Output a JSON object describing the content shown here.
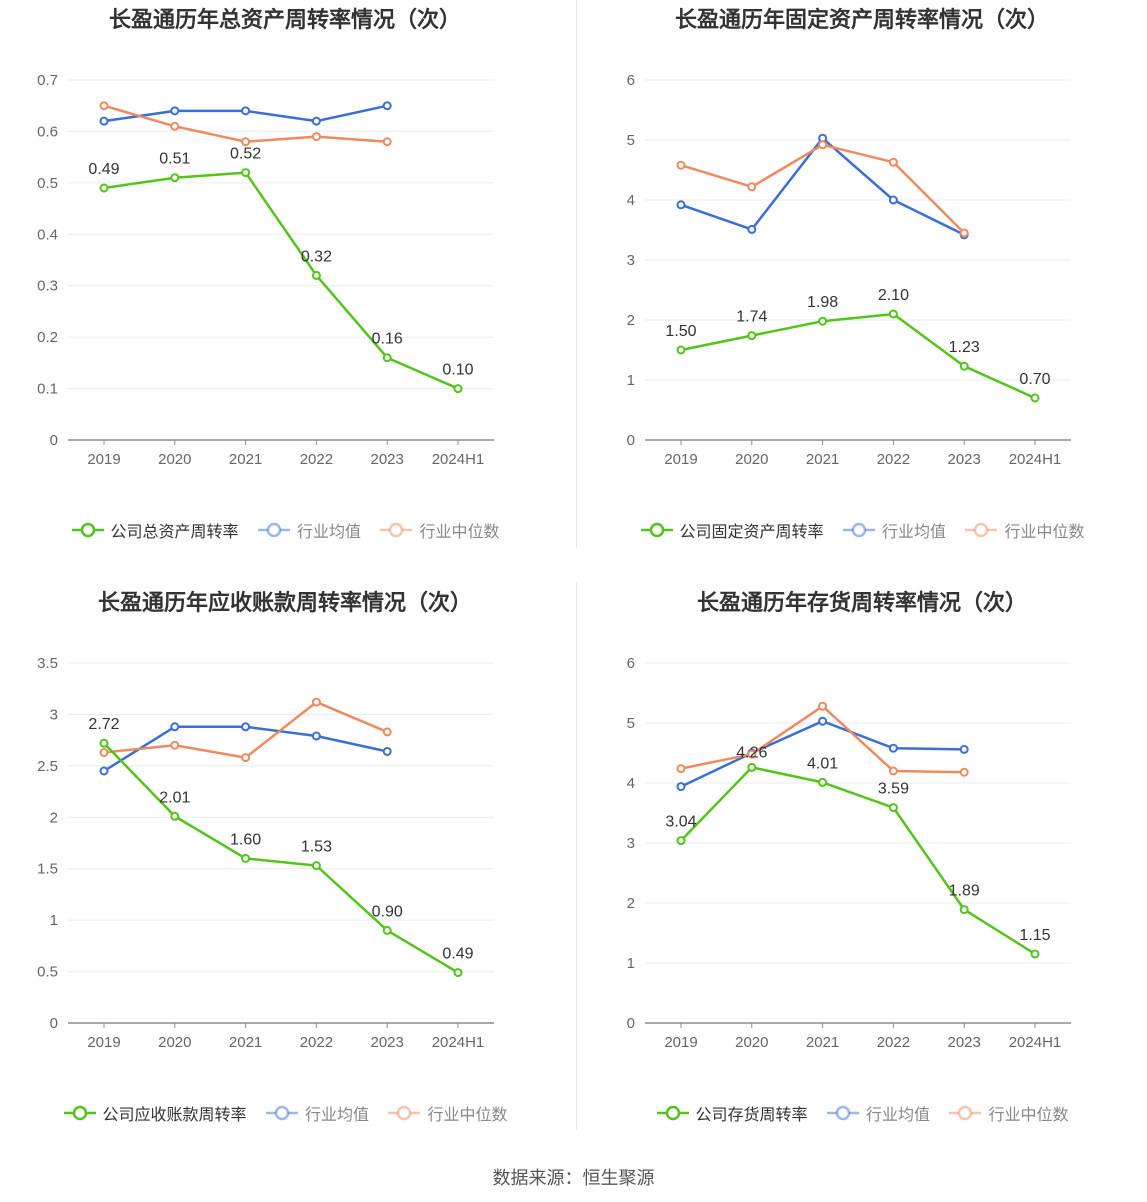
{
  "source": "数据来源：恒生聚源",
  "colors": {
    "company": "#52c41a",
    "avg": "#3a6fd8",
    "median": "#f08a5d"
  },
  "chart_data": [
    {
      "id": "p1",
      "type": "line",
      "title": "长盈通历年总资产周转率情况（次）",
      "categories": [
        "2019",
        "2020",
        "2021",
        "2022",
        "2023",
        "2024H1"
      ],
      "ylim": [
        0,
        0.7
      ],
      "yticks": [
        0,
        0.1,
        0.2,
        0.3,
        0.4,
        0.5,
        0.6,
        0.7
      ],
      "ytick_labels": [
        "0",
        "0.1",
        "0.2",
        "0.3",
        "0.4",
        "0.5",
        "0.6",
        "0.7"
      ],
      "series": [
        {
          "name": "公司总资产周转率",
          "key": "company",
          "values": [
            0.49,
            0.51,
            0.52,
            0.32,
            0.16,
            0.1
          ],
          "labels": [
            "0.49",
            "0.51",
            "0.52",
            "0.32",
            "0.16",
            "0.10"
          ]
        },
        {
          "name": "行业均值",
          "key": "avg",
          "values": [
            0.62,
            0.64,
            0.64,
            0.62,
            0.65,
            null
          ]
        },
        {
          "name": "行业中位数",
          "key": "median",
          "values": [
            0.65,
            0.61,
            0.58,
            0.59,
            0.58,
            null
          ]
        }
      ]
    },
    {
      "id": "p2",
      "type": "line",
      "title": "长盈通历年固定资产周转率情况（次）",
      "categories": [
        "2019",
        "2020",
        "2021",
        "2022",
        "2023",
        "2024H1"
      ],
      "ylim": [
        0,
        6
      ],
      "yticks": [
        0,
        1,
        2,
        3,
        4,
        5,
        6
      ],
      "ytick_labels": [
        "0",
        "1",
        "2",
        "3",
        "4",
        "5",
        "6"
      ],
      "series": [
        {
          "name": "公司固定资产周转率",
          "key": "company",
          "values": [
            1.5,
            1.74,
            1.98,
            2.1,
            1.23,
            0.7
          ],
          "labels": [
            "1.50",
            "1.74",
            "1.98",
            "2.10",
            "1.23",
            "0.70"
          ]
        },
        {
          "name": "行业均值",
          "key": "avg",
          "values": [
            3.92,
            3.51,
            5.03,
            4.0,
            3.42,
            null
          ]
        },
        {
          "name": "行业中位数",
          "key": "median",
          "values": [
            4.58,
            4.22,
            4.92,
            4.63,
            3.45,
            null
          ]
        }
      ]
    },
    {
      "id": "p3",
      "type": "line",
      "title": "长盈通历年应收账款周转率情况（次）",
      "categories": [
        "2019",
        "2020",
        "2021",
        "2022",
        "2023",
        "2024H1"
      ],
      "ylim": [
        0,
        3.5
      ],
      "yticks": [
        0,
        0.5,
        1,
        1.5,
        2,
        2.5,
        3,
        3.5
      ],
      "ytick_labels": [
        "0",
        "0.5",
        "1",
        "1.5",
        "2",
        "2.5",
        "3",
        "3.5"
      ],
      "series": [
        {
          "name": "公司应收账款周转率",
          "key": "company",
          "values": [
            2.72,
            2.01,
            1.6,
            1.53,
            0.9,
            0.49
          ],
          "labels": [
            "2.72",
            "2.01",
            "1.60",
            "1.53",
            "0.90",
            "0.49"
          ]
        },
        {
          "name": "行业均值",
          "key": "avg",
          "values": [
            2.45,
            2.88,
            2.88,
            2.79,
            2.64,
            null
          ]
        },
        {
          "name": "行业中位数",
          "key": "median",
          "values": [
            2.63,
            2.7,
            2.58,
            3.12,
            2.83,
            null
          ]
        }
      ]
    },
    {
      "id": "p4",
      "type": "line",
      "title": "长盈通历年存货周转率情况（次）",
      "categories": [
        "2019",
        "2020",
        "2021",
        "2022",
        "2023",
        "2024H1"
      ],
      "ylim": [
        0,
        6
      ],
      "yticks": [
        0,
        1,
        2,
        3,
        4,
        5,
        6
      ],
      "ytick_labels": [
        "0",
        "1",
        "2",
        "3",
        "4",
        "5",
        "6"
      ],
      "series": [
        {
          "name": "公司存货周转率",
          "key": "company",
          "values": [
            3.04,
            4.26,
            4.01,
            3.59,
            1.89,
            1.15
          ],
          "labels": [
            "3.04",
            "4.26",
            "4.01",
            "3.59",
            "1.89",
            "1.15"
          ]
        },
        {
          "name": "行业均值",
          "key": "avg",
          "values": [
            3.94,
            4.5,
            5.03,
            4.58,
            4.56,
            null
          ]
        },
        {
          "name": "行业中位数",
          "key": "median",
          "values": [
            4.24,
            4.48,
            5.28,
            4.2,
            4.18,
            null
          ]
        }
      ]
    }
  ]
}
